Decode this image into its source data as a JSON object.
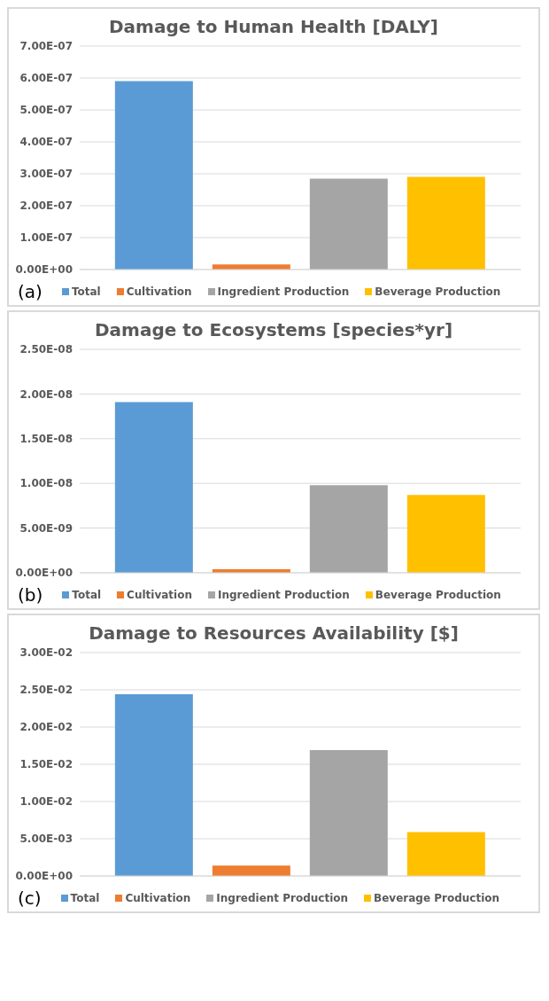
{
  "chart_data": [
    {
      "type": "bar",
      "title": "Damage to Human Health [DALY]",
      "categories": [
        null
      ],
      "series": [
        {
          "name": "Total",
          "color": "#5b9bd5",
          "values": [
            5.9e-07
          ]
        },
        {
          "name": "Cultivation",
          "color": "#ed7d31",
          "values": [
            1.6e-08
          ]
        },
        {
          "name": "Ingredient Production",
          "color": "#a5a5a5",
          "values": [
            2.85e-07
          ]
        },
        {
          "name": "Beverage Production",
          "color": "#ffc000",
          "values": [
            2.9e-07
          ]
        }
      ],
      "ylim": [
        0,
        7e-07
      ],
      "yticks": [
        {
          "value": 0,
          "label": "0.00E+00"
        },
        {
          "value": 1e-07,
          "label": "1.00E-07"
        },
        {
          "value": 2e-07,
          "label": "2.00E-07"
        },
        {
          "value": 3e-07,
          "label": "3.00E-07"
        },
        {
          "value": 4e-07,
          "label": "4.00E-07"
        },
        {
          "value": 5e-07,
          "label": "5.00E-07"
        },
        {
          "value": 6e-07,
          "label": "6.00E-07"
        },
        {
          "value": 7e-07,
          "label": "7.00E-07"
        }
      ],
      "grid": "y",
      "legend": "bottom",
      "tick_labels": "y",
      "annotations": [
        "(a)"
      ]
    },
    {
      "type": "bar",
      "title": "Damage to Ecosystems [species*yr]",
      "categories": [
        null
      ],
      "series": [
        {
          "name": "Total",
          "color": "#5b9bd5",
          "values": [
            1.91e-08
          ]
        },
        {
          "name": "Cultivation",
          "color": "#ed7d31",
          "values": [
            4e-10
          ]
        },
        {
          "name": "Ingredient Production",
          "color": "#a5a5a5",
          "values": [
            9.8e-09
          ]
        },
        {
          "name": "Beverage Production",
          "color": "#ffc000",
          "values": [
            8.7e-09
          ]
        }
      ],
      "ylim": [
        0,
        2.5e-08
      ],
      "yticks": [
        {
          "value": 0,
          "label": "0.00E+00"
        },
        {
          "value": 5e-09,
          "label": "5.00E-09"
        },
        {
          "value": 1e-08,
          "label": "1.00E-08"
        },
        {
          "value": 1.5e-08,
          "label": "1.50E-08"
        },
        {
          "value": 2e-08,
          "label": "2.00E-08"
        },
        {
          "value": 2.5e-08,
          "label": "2.50E-08"
        }
      ],
      "grid": "y",
      "legend": "bottom",
      "tick_labels": "y",
      "annotations": [
        "(b)"
      ]
    },
    {
      "type": "bar",
      "title": "Damage to Resources Availability [$]",
      "categories": [
        null
      ],
      "series": [
        {
          "name": "Total",
          "color": "#5b9bd5",
          "values": [
            0.0244
          ]
        },
        {
          "name": "Cultivation",
          "color": "#ed7d31",
          "values": [
            0.0014
          ]
        },
        {
          "name": "Ingredient Production",
          "color": "#a5a5a5",
          "values": [
            0.0169
          ]
        },
        {
          "name": "Beverage Production",
          "color": "#ffc000",
          "values": [
            0.0059
          ]
        }
      ],
      "ylim": [
        0,
        0.03
      ],
      "yticks": [
        {
          "value": 0,
          "label": "0.00E+00"
        },
        {
          "value": 0.005,
          "label": "5.00E-03"
        },
        {
          "value": 0.01,
          "label": "1.00E-02"
        },
        {
          "value": 0.015,
          "label": "1.50E-02"
        },
        {
          "value": 0.02,
          "label": "2.00E-02"
        },
        {
          "value": 0.025,
          "label": "2.50E-02"
        },
        {
          "value": 0.03,
          "label": "3.00E-02"
        }
      ],
      "grid": "y",
      "legend": "bottom",
      "tick_labels": "y",
      "annotations": [
        "(c)"
      ]
    }
  ]
}
